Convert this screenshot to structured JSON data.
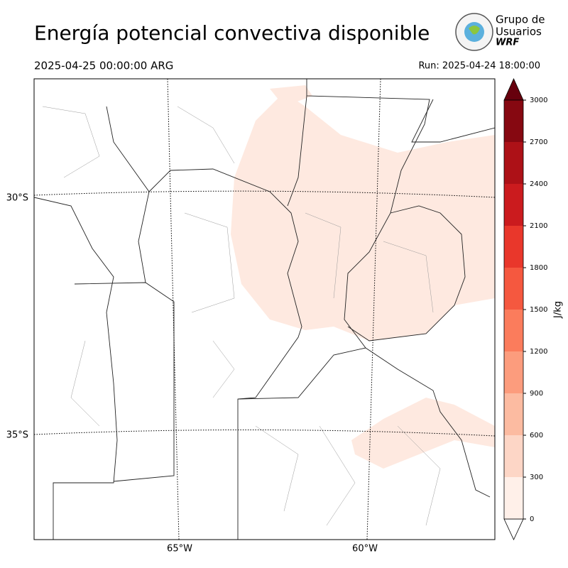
{
  "title": "Energía potencial convectiva disponible",
  "valid_time": "2025-04-25 00:00:00 ARG",
  "run_time": "Run: 2025-04-24 18:00:00",
  "logo": {
    "line1": "Grupo de",
    "line2": "Usuarios",
    "line3": "WRF"
  },
  "map": {
    "lat_labels": [
      "30°S",
      "35°S"
    ],
    "lon_labels": [
      "65°W",
      "60°W"
    ]
  },
  "colorbar": {
    "label": "J/kg",
    "levels": [
      0,
      300,
      600,
      900,
      1200,
      1500,
      1800,
      2100,
      2400,
      2700,
      3000
    ],
    "colors": [
      "#fff0e9",
      "#fdd6c6",
      "#fcbba1",
      "#fc9c7d",
      "#fb7c5c",
      "#f5583f",
      "#e9372b",
      "#cb1b1e",
      "#ad1117",
      "#860811"
    ],
    "over_color": "#67000d",
    "under_color": "#ffffff"
  }
}
